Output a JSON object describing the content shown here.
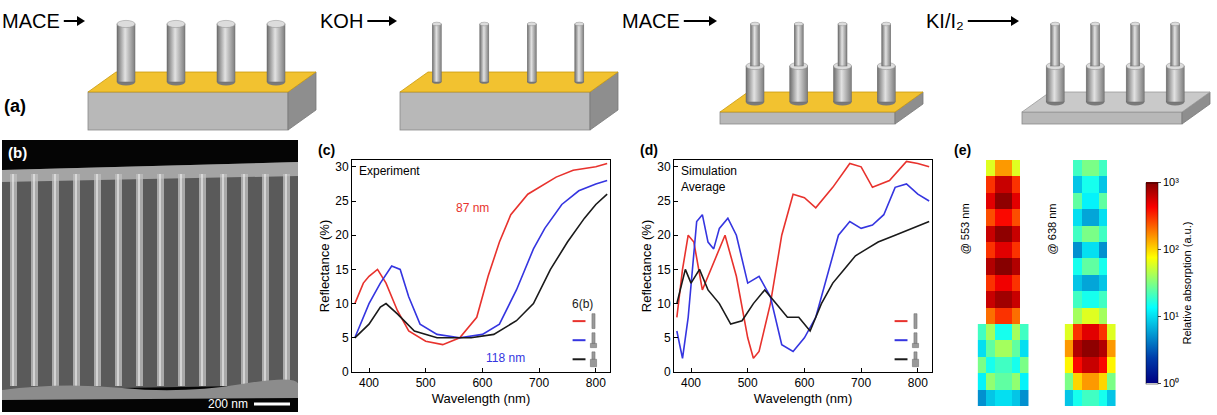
{
  "schematic": {
    "panel": "(a)",
    "steps": [
      "MACE",
      "KOH",
      "MACE",
      "KI/I₂"
    ]
  },
  "sem": {
    "panel": "(b)",
    "scale_bar": "200 nm"
  },
  "chart_data": [
    {
      "type": "line",
      "panel": "(c)",
      "title": "Experiment",
      "x_label": "Wavelength (nm)",
      "y_label": "Reflectance (%)",
      "xlim": [
        370,
        825
      ],
      "xticks": [
        400,
        500,
        600,
        700,
        800
      ],
      "ylim": [
        0,
        31
      ],
      "yticks": [
        0,
        5,
        10,
        15,
        20,
        25,
        30
      ],
      "series": [
        {
          "color": "#e8322d",
          "x": [
            375,
            390,
            400,
            415,
            430,
            450,
            470,
            500,
            530,
            560,
            590,
            610,
            630,
            650,
            680,
            700,
            730,
            760,
            800,
            820
          ],
          "values": [
            10,
            13,
            14,
            15,
            13,
            9,
            6,
            4.5,
            4,
            5,
            8,
            14,
            19,
            23,
            26,
            27,
            28.5,
            29.5,
            30,
            30.5
          ]
        },
        {
          "color": "#3535e0",
          "x": [
            375,
            400,
            420,
            440,
            455,
            470,
            490,
            520,
            560,
            600,
            630,
            660,
            690,
            710,
            740,
            770,
            800,
            820
          ],
          "values": [
            5,
            10,
            13,
            15.5,
            15,
            11,
            7,
            5.5,
            5,
            5.5,
            7,
            12,
            18,
            21,
            24.5,
            26.5,
            27.5,
            28
          ]
        },
        {
          "color": "#1a1a1a",
          "x": [
            375,
            400,
            420,
            430,
            450,
            480,
            520,
            580,
            620,
            660,
            690,
            720,
            750,
            780,
            800,
            820
          ],
          "values": [
            5,
            7,
            9.5,
            10,
            8.5,
            6,
            5,
            5,
            5.5,
            7.5,
            10,
            15,
            19,
            22.5,
            24.5,
            26
          ]
        }
      ],
      "annotations": [
        {
          "text": "87 nm",
          "x": 615,
          "y": 24,
          "color": "#e8322d"
        },
        {
          "text": "118 nm",
          "x": 640,
          "y": 2,
          "color": "#3535e0"
        },
        {
          "text": "6(b)",
          "x": 755,
          "y": 10,
          "color": "#1a1a1a"
        }
      ]
    },
    {
      "type": "line",
      "panel": "(d)",
      "title": "Simulation\nAverage",
      "x_label": "Wavelength (nm)",
      "y_label": "Reflectance (%)",
      "xlim": [
        370,
        825
      ],
      "xticks": [
        400,
        500,
        600,
        700,
        800
      ],
      "ylim": [
        0,
        31
      ],
      "yticks": [
        0,
        5,
        10,
        15,
        20,
        25,
        30
      ],
      "series": [
        {
          "color": "#e8322d",
          "x": [
            375,
            385,
            395,
            405,
            420,
            440,
            460,
            480,
            500,
            510,
            520,
            540,
            560,
            580,
            600,
            620,
            650,
            680,
            700,
            720,
            750,
            780,
            800,
            820
          ],
          "values": [
            8,
            15,
            20,
            19,
            12,
            16,
            20,
            14,
            5,
            2,
            3,
            10,
            20,
            26,
            25.5,
            24,
            27,
            30.5,
            30,
            27,
            28,
            30.8,
            30.5,
            30
          ]
        },
        {
          "color": "#3535e0",
          "x": [
            375,
            385,
            395,
            410,
            420,
            430,
            440,
            450,
            465,
            480,
            500,
            520,
            540,
            560,
            580,
            600,
            620,
            640,
            660,
            680,
            700,
            720,
            740,
            760,
            780,
            800,
            820
          ],
          "values": [
            6,
            2,
            8,
            22,
            23,
            19,
            18,
            21,
            22.5,
            20,
            13,
            14,
            11,
            4,
            3,
            5,
            8,
            14,
            20,
            22,
            21,
            21.5,
            23,
            27,
            27.5,
            26,
            25
          ]
        },
        {
          "color": "#1a1a1a",
          "x": [
            375,
            390,
            400,
            415,
            430,
            450,
            470,
            490,
            510,
            530,
            550,
            570,
            590,
            610,
            630,
            650,
            670,
            690,
            710,
            730,
            760,
            790,
            820
          ],
          "values": [
            10,
            15,
            13,
            15,
            12,
            10,
            7,
            7.5,
            10,
            12,
            10,
            8,
            8,
            6,
            10,
            13,
            15,
            17,
            18,
            19,
            20,
            21,
            22
          ]
        }
      ]
    },
    {
      "type": "heatmap",
      "panel": "(e)",
      "log": true,
      "maps": [
        {
          "label": "@ 553 nm",
          "cells": [
            [
              null,
              60,
              150,
              150,
              60,
              null
            ],
            [
              null,
              300,
              600,
              600,
              300,
              null
            ],
            [
              null,
              500,
              900,
              900,
              500,
              null
            ],
            [
              null,
              250,
              400,
              400,
              250,
              null
            ],
            [
              null,
              600,
              900,
              900,
              600,
              null
            ],
            [
              null,
              300,
              500,
              500,
              300,
              null
            ],
            [
              null,
              700,
              950,
              950,
              700,
              null
            ],
            [
              null,
              300,
              450,
              450,
              300,
              null
            ],
            [
              null,
              600,
              800,
              800,
              600,
              null
            ],
            [
              null,
              200,
              300,
              300,
              200,
              null
            ],
            [
              20,
              40,
              15,
              15,
              40,
              20
            ],
            [
              10,
              25,
              40,
              40,
              25,
              10
            ],
            [
              30,
              15,
              20,
              20,
              15,
              30
            ],
            [
              12,
              35,
              25,
              25,
              35,
              12
            ],
            [
              5,
              8,
              10,
              10,
              8,
              5
            ]
          ]
        },
        {
          "label": "@ 638 nm",
          "cells": [
            [
              null,
              20,
              30,
              30,
              20,
              null
            ],
            [
              null,
              8,
              15,
              15,
              8,
              null
            ],
            [
              null,
              25,
              12,
              12,
              25,
              null
            ],
            [
              null,
              10,
              6,
              6,
              10,
              null
            ],
            [
              null,
              20,
              30,
              30,
              20,
              null
            ],
            [
              null,
              5,
              10,
              10,
              5,
              null
            ],
            [
              null,
              15,
              25,
              25,
              15,
              null
            ],
            [
              null,
              8,
              6,
              6,
              8,
              null
            ],
            [
              null,
              20,
              15,
              15,
              20,
              null
            ],
            [
              null,
              40,
              60,
              60,
              40,
              null
            ],
            [
              60,
              300,
              500,
              500,
              300,
              60
            ],
            [
              150,
              700,
              900,
              900,
              700,
              150
            ],
            [
              80,
              400,
              600,
              600,
              400,
              80
            ],
            [
              30,
              100,
              150,
              150,
              100,
              30
            ],
            [
              8,
              15,
              20,
              20,
              15,
              8
            ]
          ]
        }
      ],
      "colorbar": {
        "title": "Relative absorption (a.u.)",
        "zlim": [
          1,
          1000
        ],
        "zticks": [
          {
            "value": 1,
            "label": "10⁰"
          },
          {
            "value": 10,
            "label": "10¹"
          },
          {
            "value": 100,
            "label": "10²"
          },
          {
            "value": 1000,
            "label": "10³"
          }
        ]
      }
    }
  ]
}
